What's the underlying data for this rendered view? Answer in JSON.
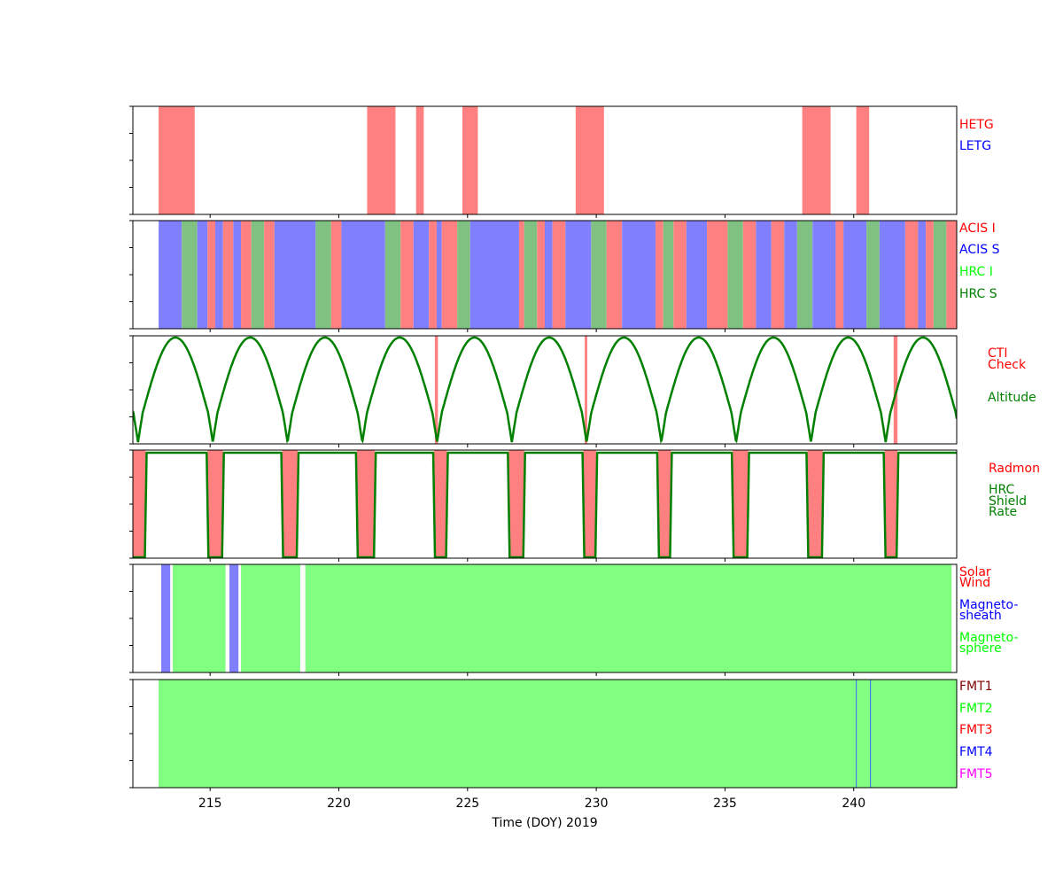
{
  "chart_data": {
    "type": "timeline",
    "xlabel": "Time (DOY) 2019",
    "xlim": [
      212,
      244
    ],
    "xticks": [
      215,
      220,
      225,
      230,
      235,
      240
    ],
    "colors": {
      "red": "#ff8080",
      "blue": "#8080ff",
      "dkgreen": "#80c080",
      "green": "#80ff80",
      "line": "#008000",
      "fmt_line": "#4060ff"
    },
    "panels": [
      {
        "id": "grating",
        "legend": [
          {
            "label": "HETG",
            "color": "#ff0000"
          },
          {
            "label": "LETG",
            "color": "#0000ff"
          }
        ],
        "spans": [
          {
            "start": 213.0,
            "end": 214.4,
            "color": "red"
          },
          {
            "start": 221.1,
            "end": 222.2,
            "color": "red"
          },
          {
            "start": 223.0,
            "end": 223.3,
            "color": "red"
          },
          {
            "start": 224.8,
            "end": 225.4,
            "color": "red"
          },
          {
            "start": 229.2,
            "end": 230.3,
            "color": "red"
          },
          {
            "start": 238.0,
            "end": 239.1,
            "color": "red"
          },
          {
            "start": 240.1,
            "end": 240.6,
            "color": "red"
          }
        ]
      },
      {
        "id": "instrument",
        "legend": [
          {
            "label": "ACIS I",
            "color": "#ff0000"
          },
          {
            "label": "ACIS S",
            "color": "#0000ff"
          },
          {
            "label": "HRC I",
            "color": "#00ff00"
          },
          {
            "label": "HRC S",
            "color": "#008000"
          }
        ],
        "spans": [
          {
            "start": 213.0,
            "end": 213.9,
            "color": "blue"
          },
          {
            "start": 213.9,
            "end": 214.5,
            "color": "dkgreen"
          },
          {
            "start": 214.5,
            "end": 214.9,
            "color": "blue"
          },
          {
            "start": 214.9,
            "end": 215.2,
            "color": "red"
          },
          {
            "start": 215.2,
            "end": 215.5,
            "color": "blue"
          },
          {
            "start": 215.5,
            "end": 215.9,
            "color": "red"
          },
          {
            "start": 215.9,
            "end": 216.2,
            "color": "blue"
          },
          {
            "start": 216.2,
            "end": 216.6,
            "color": "red"
          },
          {
            "start": 216.6,
            "end": 217.1,
            "color": "dkgreen"
          },
          {
            "start": 217.1,
            "end": 217.5,
            "color": "red"
          },
          {
            "start": 217.5,
            "end": 219.1,
            "color": "blue"
          },
          {
            "start": 219.1,
            "end": 219.7,
            "color": "dkgreen"
          },
          {
            "start": 219.7,
            "end": 220.1,
            "color": "red"
          },
          {
            "start": 220.1,
            "end": 221.8,
            "color": "blue"
          },
          {
            "start": 221.8,
            "end": 222.4,
            "color": "dkgreen"
          },
          {
            "start": 222.4,
            "end": 222.9,
            "color": "red"
          },
          {
            "start": 222.9,
            "end": 223.5,
            "color": "blue"
          },
          {
            "start": 223.5,
            "end": 223.8,
            "color": "red"
          },
          {
            "start": 223.8,
            "end": 224.0,
            "color": "blue"
          },
          {
            "start": 224.0,
            "end": 224.6,
            "color": "red"
          },
          {
            "start": 224.6,
            "end": 225.1,
            "color": "dkgreen"
          },
          {
            "start": 225.1,
            "end": 227.0,
            "color": "blue"
          },
          {
            "start": 227.0,
            "end": 227.2,
            "color": "red"
          },
          {
            "start": 227.2,
            "end": 227.7,
            "color": "dkgreen"
          },
          {
            "start": 227.7,
            "end": 228.0,
            "color": "red"
          },
          {
            "start": 228.0,
            "end": 228.3,
            "color": "blue"
          },
          {
            "start": 228.3,
            "end": 228.8,
            "color": "red"
          },
          {
            "start": 228.8,
            "end": 229.8,
            "color": "blue"
          },
          {
            "start": 229.8,
            "end": 230.4,
            "color": "dkgreen"
          },
          {
            "start": 230.4,
            "end": 231.0,
            "color": "red"
          },
          {
            "start": 231.0,
            "end": 232.3,
            "color": "blue"
          },
          {
            "start": 232.3,
            "end": 232.6,
            "color": "red"
          },
          {
            "start": 232.6,
            "end": 233.0,
            "color": "dkgreen"
          },
          {
            "start": 233.0,
            "end": 233.5,
            "color": "red"
          },
          {
            "start": 233.5,
            "end": 234.3,
            "color": "blue"
          },
          {
            "start": 234.3,
            "end": 235.1,
            "color": "red"
          },
          {
            "start": 235.1,
            "end": 235.7,
            "color": "dkgreen"
          },
          {
            "start": 235.7,
            "end": 236.2,
            "color": "red"
          },
          {
            "start": 236.2,
            "end": 236.8,
            "color": "blue"
          },
          {
            "start": 236.8,
            "end": 237.3,
            "color": "red"
          },
          {
            "start": 237.3,
            "end": 237.8,
            "color": "blue"
          },
          {
            "start": 237.8,
            "end": 238.4,
            "color": "dkgreen"
          },
          {
            "start": 238.4,
            "end": 239.3,
            "color": "blue"
          },
          {
            "start": 239.3,
            "end": 239.6,
            "color": "red"
          },
          {
            "start": 239.6,
            "end": 240.5,
            "color": "blue"
          },
          {
            "start": 240.5,
            "end": 241.0,
            "color": "dkgreen"
          },
          {
            "start": 241.0,
            "end": 242.0,
            "color": "blue"
          },
          {
            "start": 242.0,
            "end": 242.5,
            "color": "red"
          },
          {
            "start": 242.5,
            "end": 242.8,
            "color": "blue"
          },
          {
            "start": 242.8,
            "end": 243.1,
            "color": "red"
          },
          {
            "start": 243.1,
            "end": 243.6,
            "color": "dkgreen"
          },
          {
            "start": 243.6,
            "end": 244.0,
            "color": "red"
          }
        ]
      },
      {
        "id": "altitude",
        "legend": [
          {
            "label": "CTI",
            "color": "#ff0000"
          },
          {
            "label": "Check",
            "color": "#ff0000"
          },
          {
            "label": "Altitude",
            "color": "#008000"
          }
        ],
        "spans": [
          {
            "start": 223.73,
            "end": 223.85,
            "color": "red"
          },
          {
            "start": 229.55,
            "end": 229.65,
            "color": "red"
          },
          {
            "start": 241.55,
            "end": 241.7,
            "color": "red"
          }
        ],
        "orbit": {
          "period": 2.9,
          "first_minimum": 212.2,
          "min_width": 0.18,
          "phase_drift": 0.004
        }
      },
      {
        "id": "radmon",
        "legend": [
          {
            "label": "Radmon",
            "color": "#ff0000"
          },
          {
            "label": "HRC",
            "color": "#008000"
          },
          {
            "label": "Shield",
            "color": "#008000"
          },
          {
            "label": "Rate",
            "color": "#008000"
          }
        ],
        "spans": [
          {
            "start": 212.0,
            "end": 212.5,
            "color": "red"
          },
          {
            "start": 214.9,
            "end": 215.5,
            "color": "red"
          },
          {
            "start": 217.8,
            "end": 218.4,
            "color": "red"
          },
          {
            "start": 220.7,
            "end": 221.4,
            "color": "red"
          },
          {
            "start": 223.7,
            "end": 224.2,
            "color": "red"
          },
          {
            "start": 226.6,
            "end": 227.2,
            "color": "red"
          },
          {
            "start": 229.5,
            "end": 230.0,
            "color": "red"
          },
          {
            "start": 232.4,
            "end": 232.9,
            "color": "red"
          },
          {
            "start": 235.3,
            "end": 235.9,
            "color": "red"
          },
          {
            "start": 238.2,
            "end": 238.8,
            "color": "red"
          },
          {
            "start": 241.2,
            "end": 241.7,
            "color": "red"
          }
        ],
        "shield_rate_level": 0.97,
        "shield_rate_level_after_215": 0.94
      },
      {
        "id": "environment",
        "legend": [
          {
            "label": "Solar",
            "color": "#ff0000"
          },
          {
            "label": "Wind",
            "color": "#ff0000"
          },
          {
            "label": "Magneto-",
            "color": "#0000ff"
          },
          {
            "label": "sheath",
            "color": "#0000ff"
          },
          {
            "label": "Magneto-",
            "color": "#00ff00"
          },
          {
            "label": "sphere",
            "color": "#00ff00"
          }
        ],
        "spans": [
          {
            "start": 213.1,
            "end": 213.45,
            "color": "blue"
          },
          {
            "start": 213.55,
            "end": 215.6,
            "color": "green"
          },
          {
            "start": 215.75,
            "end": 216.1,
            "color": "blue"
          },
          {
            "start": 216.2,
            "end": 218.5,
            "color": "green"
          },
          {
            "start": 218.7,
            "end": 243.8,
            "color": "green"
          }
        ]
      },
      {
        "id": "format",
        "legend": [
          {
            "label": "FMT1",
            "color": "#800000"
          },
          {
            "label": "FMT2",
            "color": "#00ff00"
          },
          {
            "label": "FMT3",
            "color": "#ff0000"
          },
          {
            "label": "FMT4",
            "color": "#0000ff"
          },
          {
            "label": "FMT5",
            "color": "#ff00ff"
          }
        ],
        "spans": [
          {
            "start": 213.0,
            "end": 244.0,
            "color": "green"
          }
        ],
        "marks": [
          240.1,
          240.65
        ]
      }
    ]
  }
}
